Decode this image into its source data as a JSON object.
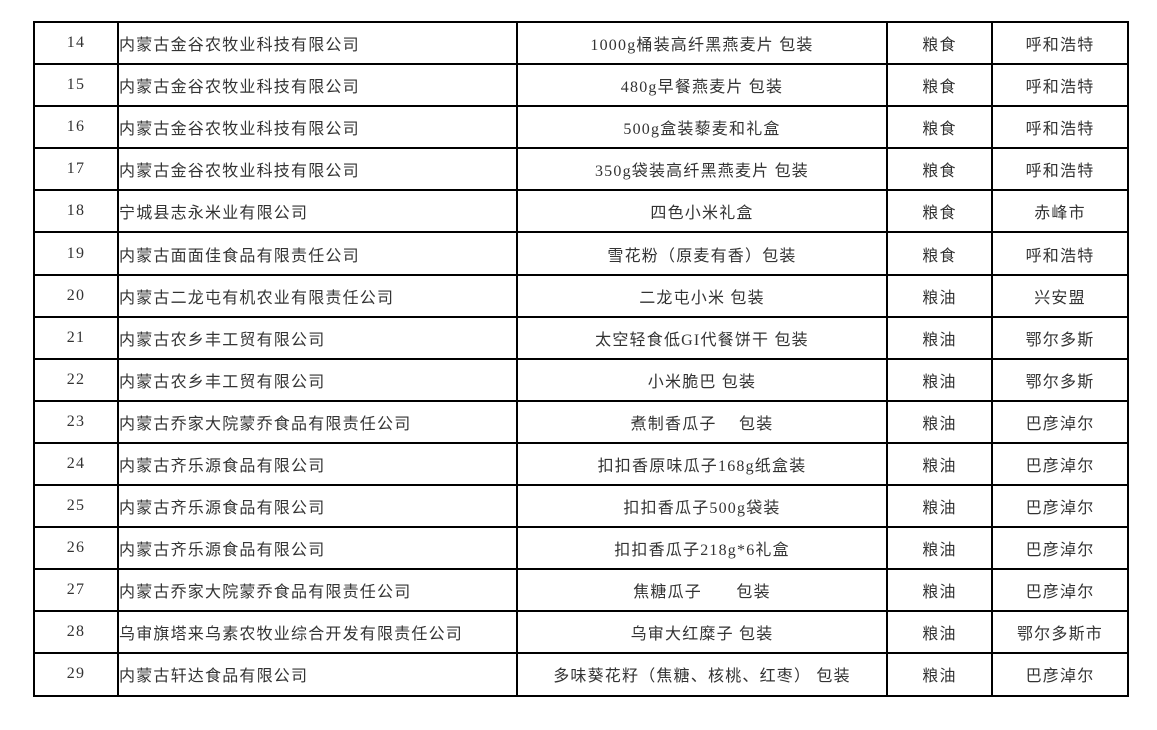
{
  "table": {
    "rows": [
      {
        "no": "14",
        "company": "内蒙古金谷农牧业科技有限公司",
        "product": "1000g桶装高纤黑燕麦片 包装",
        "category": "粮食",
        "city": "呼和浩特"
      },
      {
        "no": "15",
        "company": "内蒙古金谷农牧业科技有限公司",
        "product": "480g早餐燕麦片 包装",
        "category": "粮食",
        "city": "呼和浩特"
      },
      {
        "no": "16",
        "company": "内蒙古金谷农牧业科技有限公司",
        "product": "500g盒装藜麦和礼盒",
        "category": "粮食",
        "city": "呼和浩特"
      },
      {
        "no": "17",
        "company": "内蒙古金谷农牧业科技有限公司",
        "product": "350g袋装高纤黑燕麦片 包装",
        "category": "粮食",
        "city": "呼和浩特"
      },
      {
        "no": "18",
        "company": "宁城县志永米业有限公司",
        "product": "四色小米礼盒",
        "category": "粮食",
        "city": "赤峰市"
      },
      {
        "no": "19",
        "company": "内蒙古面面佳食品有限责任公司",
        "product": "雪花粉（原麦有香）包装",
        "category": "粮食",
        "city": "呼和浩特"
      },
      {
        "no": "20",
        "company": "内蒙古二龙屯有机农业有限责任公司",
        "product": "二龙屯小米 包装",
        "category": "粮油",
        "city": "兴安盟"
      },
      {
        "no": "21",
        "company": "内蒙古农乡丰工贸有限公司",
        "product": "太空轻食低GI代餐饼干 包装",
        "category": "粮油",
        "city": "鄂尔多斯"
      },
      {
        "no": "22",
        "company": "内蒙古农乡丰工贸有限公司",
        "product": "小米脆巴 包装",
        "category": "粮油",
        "city": "鄂尔多斯"
      },
      {
        "no": "23",
        "company": "内蒙古乔家大院蒙乔食品有限责任公司",
        "product": "煮制香瓜子　 包装",
        "category": "粮油",
        "city": "巴彦淖尔"
      },
      {
        "no": "24",
        "company": "内蒙古齐乐源食品有限公司",
        "product": "扣扣香原味瓜子168g纸盒装",
        "category": "粮油",
        "city": "巴彦淖尔"
      },
      {
        "no": "25",
        "company": "内蒙古齐乐源食品有限公司",
        "product": "扣扣香瓜子500g袋装",
        "category": "粮油",
        "city": "巴彦淖尔"
      },
      {
        "no": "26",
        "company": "内蒙古齐乐源食品有限公司",
        "product": "扣扣香瓜子218g*6礼盒",
        "category": "粮油",
        "city": "巴彦淖尔"
      },
      {
        "no": "27",
        "company": "内蒙古乔家大院蒙乔食品有限责任公司",
        "product": "焦糖瓜子　　包装",
        "category": "粮油",
        "city": "巴彦淖尔"
      },
      {
        "no": "28",
        "company": "乌审旗塔来乌素农牧业综合开发有限责任公司",
        "product": "乌审大红糜子 包装",
        "category": "粮油",
        "city": "鄂尔多斯市"
      },
      {
        "no": "29",
        "company": "内蒙古轩达食品有限公司",
        "product": "多味葵花籽（焦糖、核桃、红枣） 包装",
        "category": "粮油",
        "city": "巴彦淖尔"
      }
    ]
  },
  "colors": {
    "border": "#000000",
    "text": "#333333",
    "background": "#ffffff"
  }
}
